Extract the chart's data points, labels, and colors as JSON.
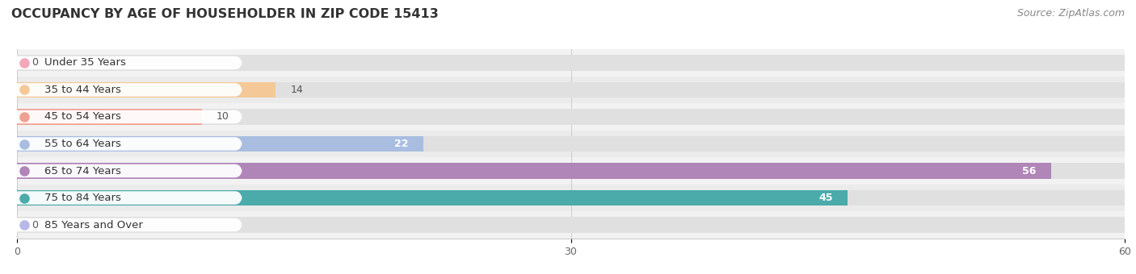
{
  "title": "OCCUPANCY BY AGE OF HOUSEHOLDER IN ZIP CODE 15413",
  "source": "Source: ZipAtlas.com",
  "categories": [
    "Under 35 Years",
    "35 to 44 Years",
    "45 to 54 Years",
    "55 to 64 Years",
    "65 to 74 Years",
    "75 to 84 Years",
    "85 Years and Over"
  ],
  "values": [
    0,
    14,
    10,
    22,
    56,
    45,
    0
  ],
  "bar_colors": [
    "#f4a7b9",
    "#f5c897",
    "#f0a090",
    "#a8bde0",
    "#b085b8",
    "#4aabaa",
    "#b8b8e8"
  ],
  "row_colors": [
    "#f2f2f2",
    "#ebebeb",
    "#f2f2f2",
    "#ebebeb",
    "#f2f2f2",
    "#ebebeb",
    "#f2f2f2"
  ],
  "bar_bg_color": "#e0e0e0",
  "xlim": [
    0,
    60
  ],
  "xticks": [
    0,
    30,
    60
  ],
  "title_fontsize": 11.5,
  "label_fontsize": 9.5,
  "value_fontsize": 9,
  "source_fontsize": 9,
  "bar_height": 0.58,
  "background_color": "#ffffff",
  "label_pill_color": "#ffffff",
  "grid_color": "#cccccc"
}
